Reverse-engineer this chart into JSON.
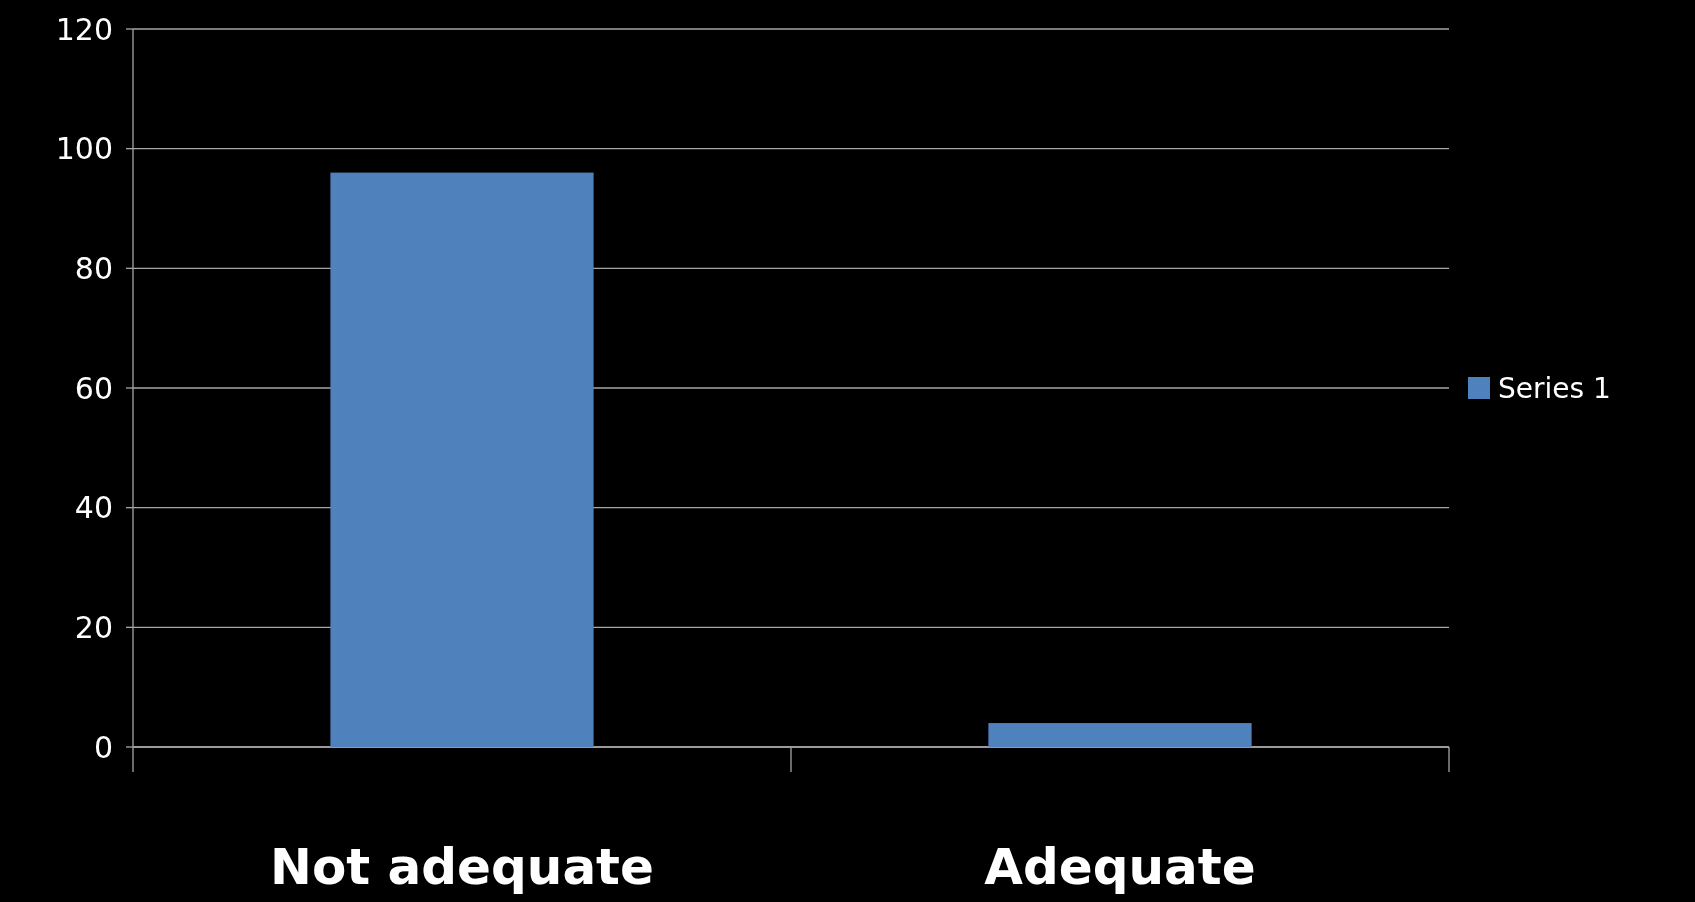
{
  "chart_data": {
    "type": "bar",
    "categories": [
      "Not adequate",
      "Adequate"
    ],
    "series": [
      {
        "name": "Series 1",
        "color": "#4f81bd",
        "values": [
          96,
          4
        ]
      }
    ],
    "ylim": [
      0,
      120
    ],
    "yticks": [
      0,
      20,
      40,
      60,
      80,
      100,
      120
    ],
    "grid": "y",
    "legend": "right"
  }
}
